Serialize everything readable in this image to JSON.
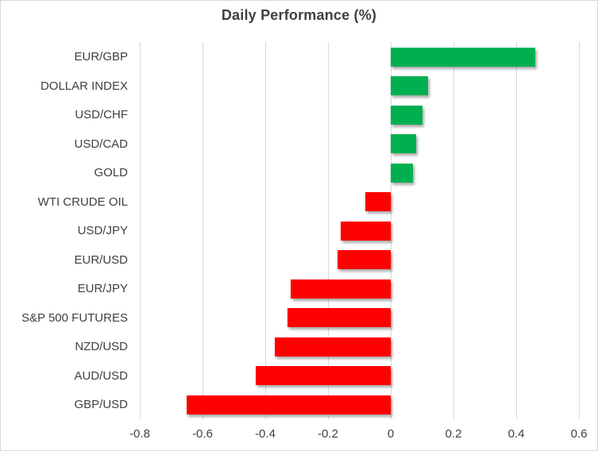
{
  "chart_data": {
    "type": "bar",
    "orientation": "horizontal",
    "title": "Daily Performance (%)",
    "categories": [
      "EUR/GBP",
      "DOLLAR INDEX",
      "USD/CHF",
      "USD/CAD",
      "GOLD",
      "WTI CRUDE OIL",
      "USD/JPY",
      "EUR/USD",
      "EUR/JPY",
      "S&P 500 FUTURES",
      "NZD/USD",
      "AUD/USD",
      "GBP/USD"
    ],
    "values": [
      0.46,
      0.12,
      0.1,
      0.08,
      0.07,
      -0.08,
      -0.16,
      -0.17,
      -0.32,
      -0.33,
      -0.37,
      -0.43,
      -0.65
    ],
    "xlabel": "",
    "ylabel": "",
    "xlim": [
      -0.8,
      0.6
    ],
    "x_ticks": [
      -0.8,
      -0.6,
      -0.4,
      -0.2,
      0,
      0.2,
      0.4,
      0.6
    ],
    "x_tick_labels": [
      "-0.8",
      "-0.6",
      "-0.4",
      "-0.2",
      "0",
      "0.2",
      "0.4",
      "0.6"
    ],
    "grid": "vertical-gridlines-on",
    "legend": "none",
    "colors": {
      "positive": "#00B050",
      "negative": "#FF0000",
      "gridline": "#D9D9D9",
      "border": "#D9D9D9",
      "text": "#404040",
      "background": "#FFFFFF"
    }
  }
}
